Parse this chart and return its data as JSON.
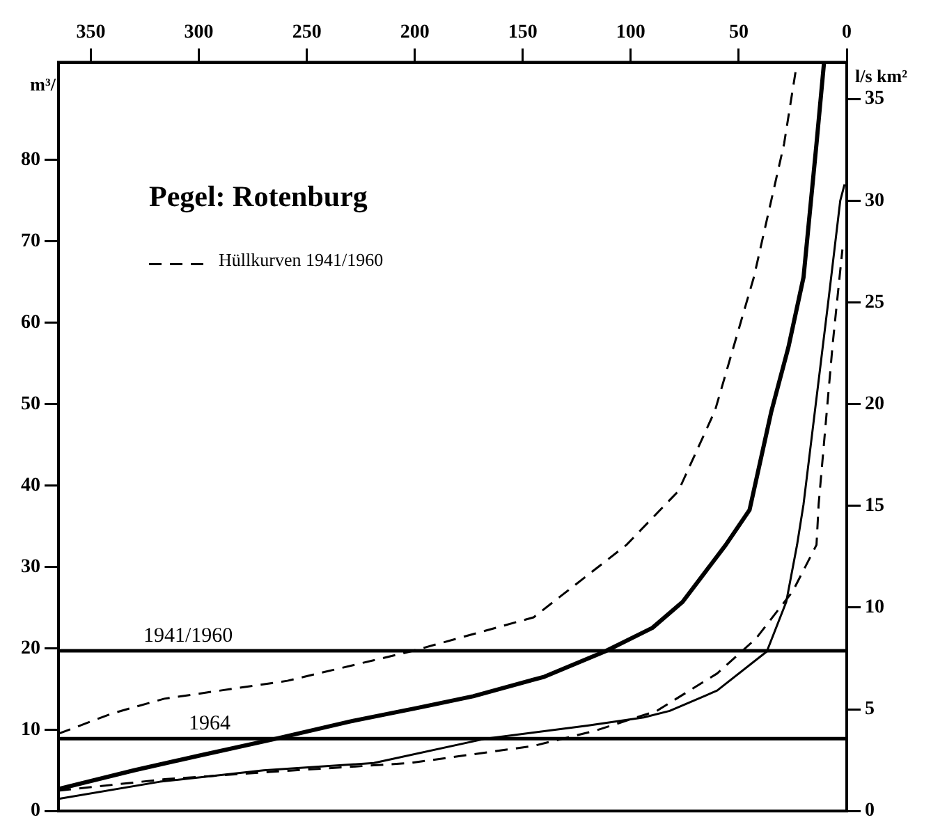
{
  "chart_data": {
    "type": "line",
    "title": "Pegel: Rotenburg",
    "ylabel": "m³/",
    "y2label": "l/s km²",
    "xlim": [
      365,
      0
    ],
    "xticks": [
      350,
      300,
      250,
      200,
      150,
      100,
      50,
      0
    ],
    "ylim": [
      0,
      92
    ],
    "yticks": [
      0,
      10,
      20,
      30,
      40,
      50,
      60,
      70,
      80
    ],
    "y2lim": [
      0,
      36.8
    ],
    "y2ticks": [
      0,
      5,
      10,
      15,
      20,
      25,
      30,
      35
    ],
    "grid": false,
    "legend": "top left",
    "marker": "none",
    "series": [
      {
        "color": "#000000",
        "line_style": "solid",
        "x": [
          365,
          330,
          300,
          264,
          230,
          200,
          173,
          140,
          112,
          90,
          76,
          56,
          45,
          35,
          27,
          20,
          14,
          10.5
        ],
        "values": [
          2.7,
          5,
          6.8,
          8.9,
          11,
          12.6,
          14.1,
          16.5,
          19.6,
          22.5,
          25.7,
          32.7,
          37,
          49,
          57,
          65.6,
          82,
          92
        ]
      },
      {
        "color": "#000000",
        "line_style": "solid",
        "x": [
          365,
          318,
          270,
          219,
          167,
          120,
          94,
          82,
          60,
          37,
          28,
          23,
          20,
          8.5,
          3,
          1
        ],
        "values": [
          1.5,
          3.6,
          5,
          5.9,
          8.9,
          10.5,
          11.5,
          12.3,
          14.8,
          19.6,
          25.7,
          32.7,
          37.7,
          62.7,
          75,
          77
        ]
      },
      {
        "name": "Hüllkurven 1941/1960",
        "color": "#000000",
        "line_style": "dashed",
        "x": [
          365,
          340,
          316,
          259,
          202,
          145,
          102,
          78,
          61,
          43,
          29,
          23
        ],
        "values": [
          9.5,
          12,
          13.8,
          16,
          19.6,
          23.8,
          32.7,
          39.3,
          49.2,
          65.6,
          82,
          92
        ]
      },
      {
        "color": "#000000",
        "line_style": "dashed",
        "x": [
          365,
          316,
          267,
          202,
          145,
          116,
          88,
          60,
          42,
          25,
          14,
          13,
          6.5,
          2
        ],
        "values": [
          2.5,
          3.9,
          4.8,
          5.9,
          8,
          9.9,
          12.3,
          16.9,
          21.2,
          27,
          32.7,
          37.7,
          57.4,
          69
        ]
      }
    ],
    "ref_lines": [
      {
        "axis": "y",
        "value": 19.7
      },
      {
        "axis": "y",
        "value": 8.9
      }
    ],
    "annotations": [
      {
        "text": "1941/1960",
        "x": 305,
        "y": 19.7
      },
      {
        "text": "1964",
        "x": 295,
        "y": 8.9
      }
    ]
  }
}
